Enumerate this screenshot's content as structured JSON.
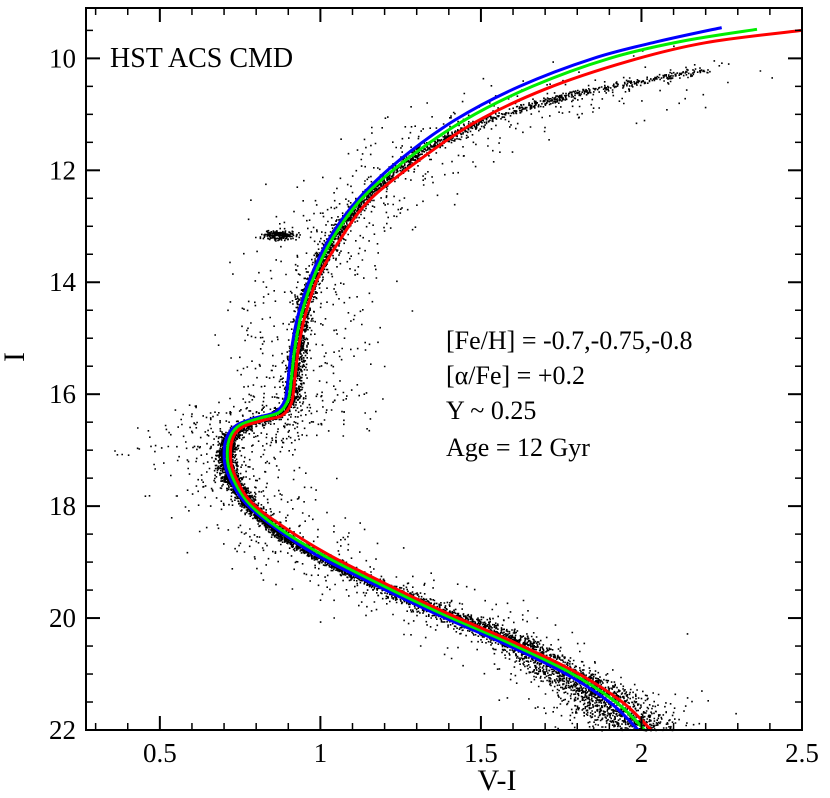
{
  "chart_data": {
    "type": "scatter",
    "title": "",
    "xlabel": "V-I",
    "ylabel": "I",
    "xlim": [
      0.27,
      2.5
    ],
    "ylim": [
      22,
      9.1
    ],
    "y_inverted": true,
    "grid": false,
    "x_ticks": [
      {
        "value": 0.5,
        "label": "0.5"
      },
      {
        "value": 1.0,
        "label": "1"
      },
      {
        "value": 1.5,
        "label": "1.5"
      },
      {
        "value": 2.0,
        "label": "2"
      },
      {
        "value": 2.5,
        "label": "2.5"
      }
    ],
    "y_ticks": [
      {
        "value": 10,
        "label": "10"
      },
      {
        "value": 12,
        "label": "12"
      },
      {
        "value": 14,
        "label": "14"
      },
      {
        "value": 16,
        "label": "16"
      },
      {
        "value": 18,
        "label": "18"
      },
      {
        "value": 20,
        "label": "20"
      },
      {
        "value": 22,
        "label": "22"
      }
    ],
    "annotations": {
      "corner_label": "HST ACS CMD",
      "params": [
        "[Fe/H] = -0.7,-0.75,-0.8",
        "[α/Fe] = +0.2",
        "Y ~ 0.25",
        "Age = 12 Gyr"
      ]
    },
    "stars": {
      "color": "#000000",
      "fiducial": [
        [
          2.0,
          22.0
        ],
        [
          1.85,
          21.3
        ],
        [
          1.6,
          20.4
        ],
        [
          1.3,
          19.7
        ],
        [
          1.1,
          19.2
        ],
        [
          0.9,
          18.6
        ],
        [
          0.78,
          18.0
        ],
        [
          0.72,
          17.5
        ],
        [
          0.7,
          17.1
        ],
        [
          0.72,
          16.7
        ],
        [
          0.78,
          16.5
        ],
        [
          0.86,
          16.4
        ],
        [
          0.91,
          16.1
        ],
        [
          0.92,
          15.5
        ],
        [
          0.93,
          15.0
        ],
        [
          0.95,
          14.3
        ],
        [
          1.0,
          13.6
        ],
        [
          1.06,
          13.0
        ],
        [
          1.15,
          12.4
        ],
        [
          1.3,
          11.7
        ],
        [
          1.5,
          11.1
        ],
        [
          1.8,
          10.6
        ],
        [
          2.2,
          10.2
        ]
      ],
      "red_clump": {
        "x": 0.87,
        "y": 13.15
      }
    },
    "series": [
      {
        "color": "#0000ff",
        "points": [
          [
            1.99,
            22.0
          ],
          [
            1.9,
            21.5
          ],
          [
            1.75,
            20.95
          ],
          [
            1.55,
            20.4
          ],
          [
            1.35,
            19.9
          ],
          [
            1.15,
            19.35
          ],
          [
            0.98,
            18.85
          ],
          [
            0.85,
            18.35
          ],
          [
            0.76,
            17.9
          ],
          [
            0.71,
            17.4
          ],
          [
            0.7,
            17.05
          ],
          [
            0.71,
            16.75
          ],
          [
            0.74,
            16.55
          ],
          [
            0.8,
            16.42
          ],
          [
            0.86,
            16.32
          ],
          [
            0.89,
            16.1
          ],
          [
            0.9,
            15.7
          ],
          [
            0.91,
            15.2
          ],
          [
            0.93,
            14.6
          ],
          [
            0.97,
            13.9
          ],
          [
            1.03,
            13.2
          ],
          [
            1.12,
            12.5
          ],
          [
            1.25,
            11.8
          ],
          [
            1.42,
            11.1
          ],
          [
            1.62,
            10.5
          ],
          [
            1.85,
            10.0
          ],
          [
            2.05,
            9.7
          ],
          [
            2.25,
            9.45
          ]
        ]
      },
      {
        "color": "#00ee00",
        "points": [
          [
            2.01,
            22.0
          ],
          [
            1.92,
            21.5
          ],
          [
            1.77,
            20.95
          ],
          [
            1.57,
            20.4
          ],
          [
            1.37,
            19.9
          ],
          [
            1.17,
            19.35
          ],
          [
            1.0,
            18.85
          ],
          [
            0.86,
            18.35
          ],
          [
            0.77,
            17.9
          ],
          [
            0.72,
            17.4
          ],
          [
            0.71,
            17.05
          ],
          [
            0.72,
            16.75
          ],
          [
            0.75,
            16.55
          ],
          [
            0.81,
            16.43
          ],
          [
            0.87,
            16.33
          ],
          [
            0.9,
            16.1
          ],
          [
            0.91,
            15.7
          ],
          [
            0.92,
            15.2
          ],
          [
            0.94,
            14.6
          ],
          [
            0.98,
            13.9
          ],
          [
            1.04,
            13.2
          ],
          [
            1.13,
            12.5
          ],
          [
            1.27,
            11.8
          ],
          [
            1.45,
            11.1
          ],
          [
            1.66,
            10.5
          ],
          [
            1.9,
            10.0
          ],
          [
            2.12,
            9.7
          ],
          [
            2.36,
            9.48
          ]
        ]
      },
      {
        "color": "#ff0000",
        "points": [
          [
            2.03,
            22.0
          ],
          [
            1.94,
            21.5
          ],
          [
            1.79,
            20.95
          ],
          [
            1.59,
            20.4
          ],
          [
            1.39,
            19.9
          ],
          [
            1.19,
            19.35
          ],
          [
            1.02,
            18.85
          ],
          [
            0.88,
            18.35
          ],
          [
            0.78,
            17.9
          ],
          [
            0.73,
            17.4
          ],
          [
            0.72,
            17.05
          ],
          [
            0.73,
            16.75
          ],
          [
            0.76,
            16.58
          ],
          [
            0.82,
            16.47
          ],
          [
            0.88,
            16.38
          ],
          [
            0.91,
            16.15
          ],
          [
            0.92,
            15.75
          ],
          [
            0.93,
            15.25
          ],
          [
            0.95,
            14.65
          ],
          [
            0.99,
            13.95
          ],
          [
            1.06,
            13.25
          ],
          [
            1.15,
            12.55
          ],
          [
            1.3,
            11.85
          ],
          [
            1.48,
            11.15
          ],
          [
            1.7,
            10.55
          ],
          [
            1.96,
            10.05
          ],
          [
            2.2,
            9.72
          ],
          [
            2.5,
            9.5
          ]
        ]
      }
    ]
  }
}
